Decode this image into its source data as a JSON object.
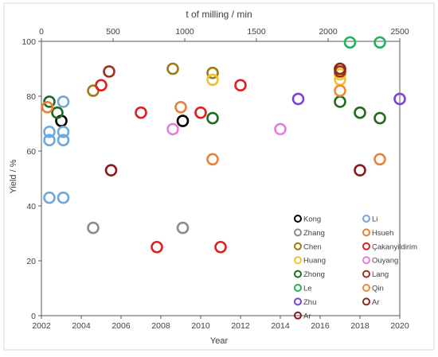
{
  "chart_data": {
    "type": "scatter",
    "xlabel": "Year",
    "ylabel": "Yield / %",
    "x2label": "t of milling / min",
    "xlim": [
      2002,
      2020
    ],
    "ylim": [
      0,
      100
    ],
    "x2lim": [
      0,
      2500
    ],
    "x_ticks": [
      2002,
      2004,
      2006,
      2008,
      2010,
      2012,
      2014,
      2016,
      2018,
      2020
    ],
    "x2_ticks": [
      0,
      500,
      1000,
      1500,
      2000,
      2500
    ],
    "y_ticks": [
      0,
      20,
      40,
      60,
      80,
      100
    ],
    "grid": false,
    "legend_position": "bottom-right",
    "series": [
      {
        "name": "Kong",
        "color": "#000000",
        "points": [
          [
            2003.0,
            71
          ],
          [
            2009.1,
            71
          ]
        ]
      },
      {
        "name": "Zhang",
        "color": "#8c8c8c",
        "points": [
          [
            2004.6,
            32
          ],
          [
            2009.1,
            32
          ]
        ]
      },
      {
        "name": "Chen",
        "color": "#9c7b0f",
        "points": [
          [
            2004.6,
            82
          ],
          [
            2008.6,
            90
          ],
          [
            2010.6,
            88.5
          ],
          [
            2017.0,
            90
          ]
        ]
      },
      {
        "name": "Huang",
        "color": "#f2c12e",
        "points": [
          [
            2010.6,
            86
          ],
          [
            2017.0,
            86
          ],
          [
            2017.0,
            88
          ]
        ]
      },
      {
        "name": "Zhong",
        "color": "#1f6b1f",
        "points": [
          [
            2002.4,
            78
          ],
          [
            2002.8,
            74
          ],
          [
            2010.6,
            72
          ],
          [
            2017.0,
            78
          ],
          [
            2018.0,
            74
          ],
          [
            2019.0,
            72
          ]
        ]
      },
      {
        "name": "Le",
        "color": "#1fb35a",
        "points": [
          [
            2017.5,
            99.6
          ],
          [
            2019.0,
            99.6
          ]
        ]
      },
      {
        "name": "Zhu",
        "color": "#7b3fe4",
        "points": [
          [
            2014.9,
            79
          ],
          [
            2020.0,
            79
          ]
        ]
      },
      {
        "name": "Ar",
        "color": "#8b1a1a",
        "points": [
          [
            2005.5,
            53
          ],
          [
            2018.0,
            53
          ]
        ]
      },
      {
        "name": "Li",
        "color": "#6fa8dc",
        "points": [
          [
            2002.4,
            67
          ],
          [
            2002.4,
            64
          ],
          [
            2002.4,
            43
          ],
          [
            2003.1,
            78
          ],
          [
            2003.1,
            67
          ],
          [
            2003.1,
            64
          ],
          [
            2003.1,
            43
          ]
        ]
      },
      {
        "name": "Hsueh",
        "color": "#e8823a",
        "points": [
          [
            2002.3,
            76
          ],
          [
            2009.0,
            76
          ],
          [
            2010.6,
            57
          ],
          [
            2019.0,
            57
          ]
        ]
      },
      {
        "name": "Çakanyildirim",
        "color": "#e02020",
        "points": [
          [
            2005.0,
            84
          ],
          [
            2007.0,
            74
          ],
          [
            2010.0,
            74
          ],
          [
            2012.0,
            84
          ],
          [
            2007.8,
            25
          ],
          [
            2011.0,
            25
          ]
        ]
      },
      {
        "name": "Ouyang",
        "color": "#e87be0",
        "points": [
          [
            2008.6,
            68
          ],
          [
            2014.0,
            68
          ]
        ]
      },
      {
        "name": "Lang",
        "color": "#a0301a",
        "points": [
          [
            2005.4,
            89
          ],
          [
            2017.0,
            89
          ]
        ]
      },
      {
        "name": "Qin",
        "color": "#f08c30",
        "points": [
          [
            2017.0,
            82
          ]
        ]
      },
      {
        "name": "Ar",
        "color": "#8b2a1a",
        "points": [
          [
            2017.0,
            90
          ]
        ]
      }
    ]
  }
}
